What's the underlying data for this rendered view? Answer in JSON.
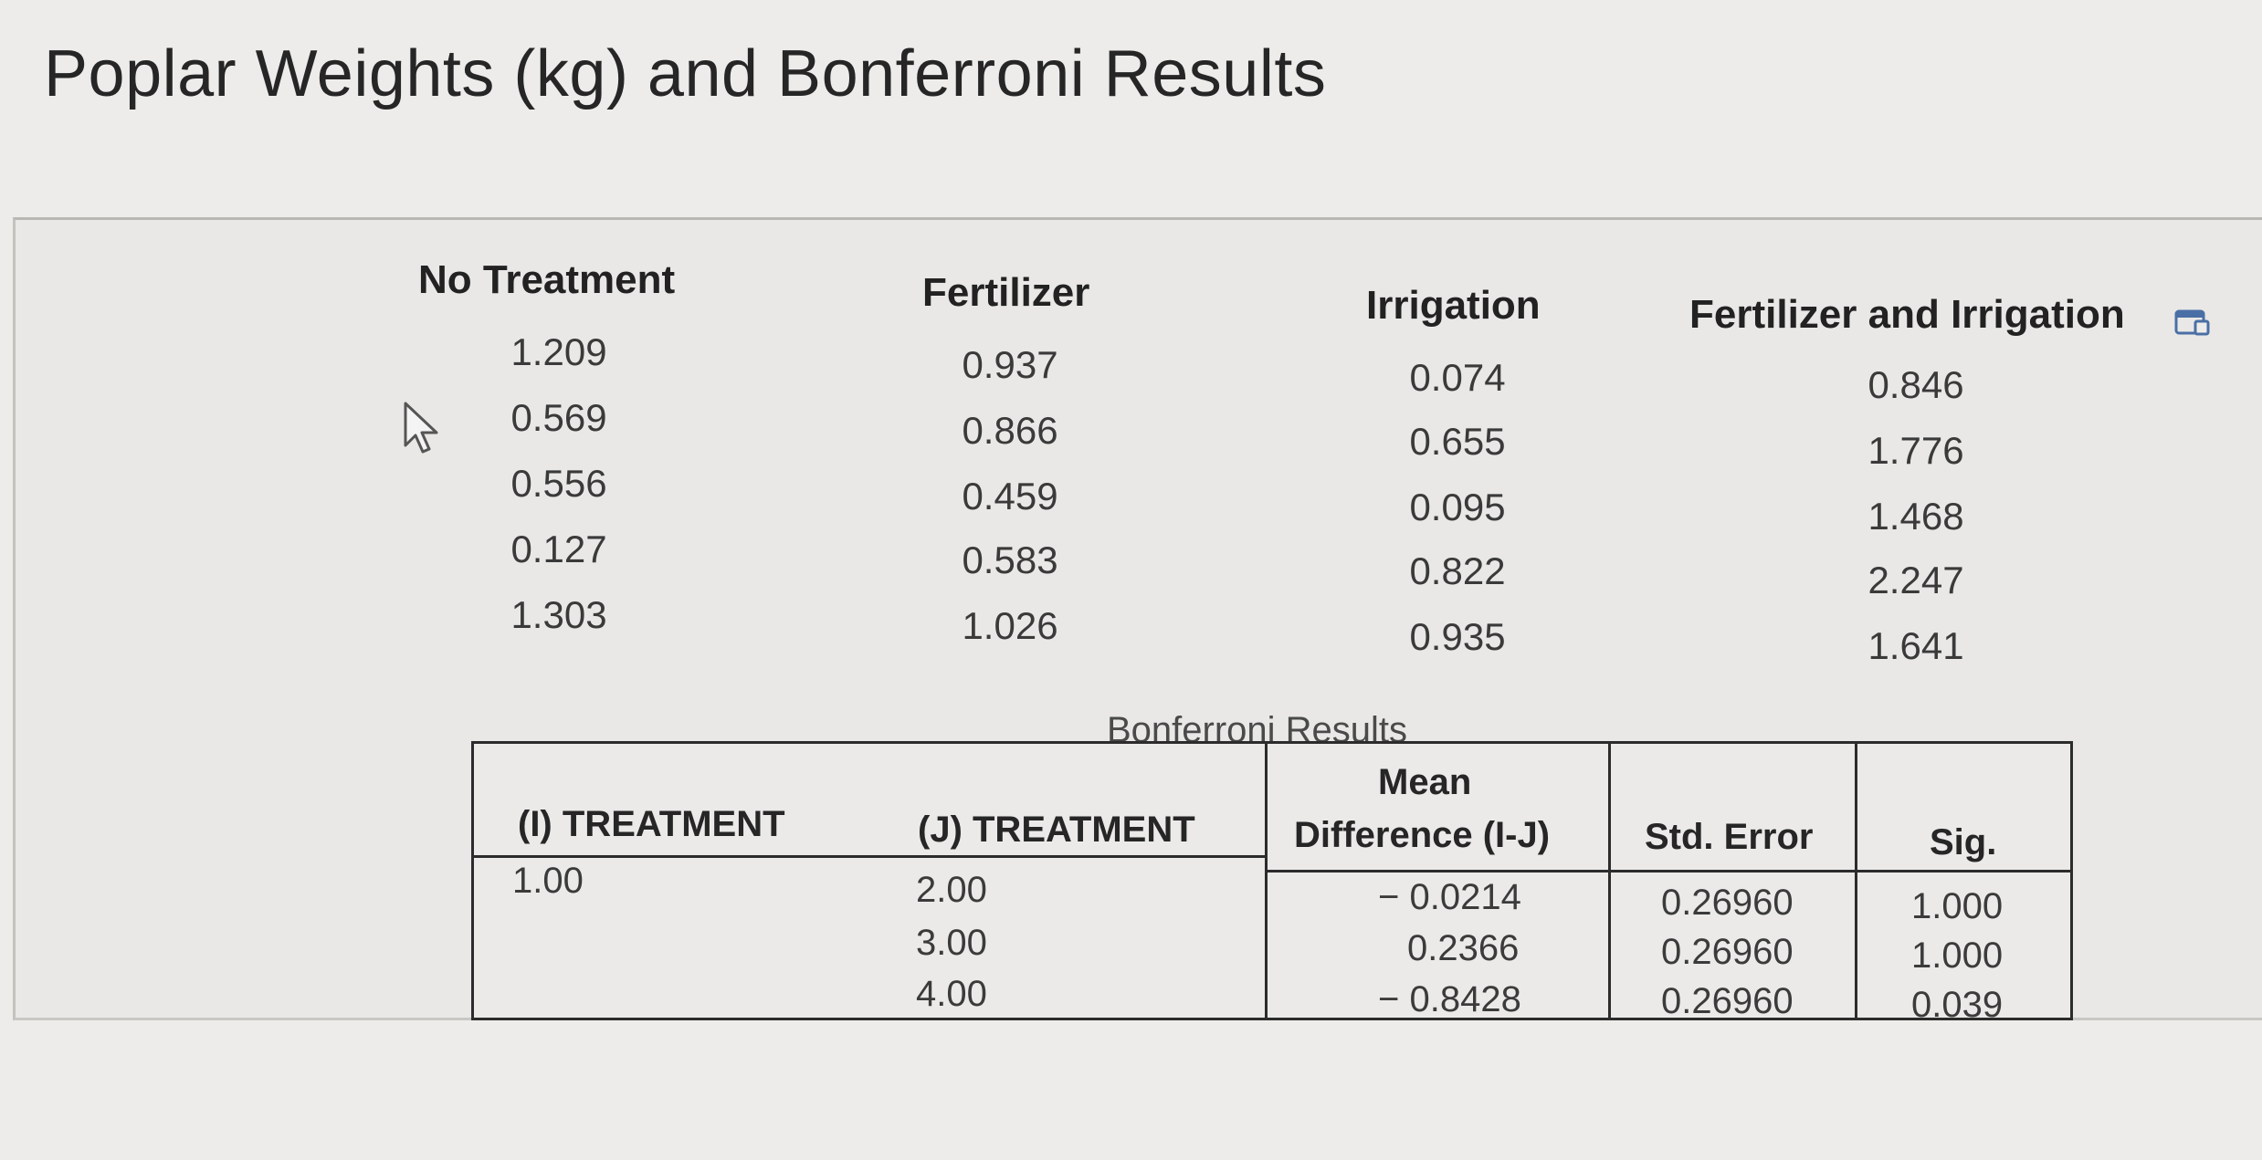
{
  "title": "Poplar Weights (kg) and Bonferroni Results",
  "weights": {
    "columns": [
      {
        "header": "No Treatment",
        "values": [
          "1.209",
          "0.569",
          "0.556",
          "0.127",
          "1.303"
        ]
      },
      {
        "header": "Fertilizer",
        "values": [
          "0.937",
          "0.866",
          "0.459",
          "0.583",
          "1.026"
        ]
      },
      {
        "header": "Irrigation",
        "values": [
          "0.074",
          "0.655",
          "0.095",
          "0.822",
          "0.935"
        ]
      },
      {
        "header": "Fertilizer and Irrigation",
        "values": [
          "0.846",
          "1.776",
          "1.468",
          "2.247",
          "1.641"
        ]
      }
    ]
  },
  "bonferroni": {
    "caption": "Bonferroni Results",
    "headers": {
      "i_treatment": "(I) TREATMENT",
      "j_treatment": "(J) TREATMENT",
      "mean_diff_line1": "Mean",
      "mean_diff_line2": "Difference (I-J)",
      "std_error": "Std. Error",
      "sig": "Sig."
    },
    "i_value": "1.00",
    "rows": [
      {
        "j": "2.00",
        "mean_diff": "− 0.0214",
        "std_error": "0.26960",
        "sig": "1.000"
      },
      {
        "j": "3.00",
        "mean_diff": "0.2366",
        "std_error": "0.26960",
        "sig": "1.000"
      },
      {
        "j": "4.00",
        "mean_diff": "− 0.8428",
        "std_error": "0.26960",
        "sig": "0.039"
      }
    ]
  },
  "icons": {
    "cursor": "mouse-pointer-icon",
    "popout": "popout-window-icon"
  }
}
